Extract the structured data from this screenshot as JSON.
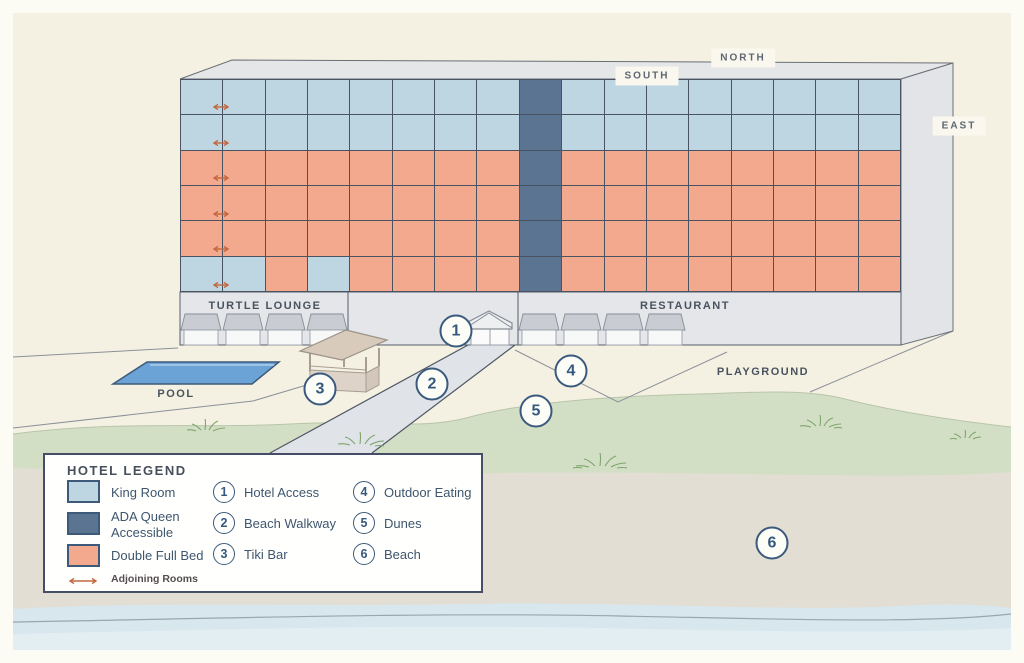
{
  "labels": {
    "north": "NORTH",
    "south": "SOUTH",
    "east": "EAST"
  },
  "building": {
    "lounge_label": "TURTLE LOUNGE",
    "restaurant_label": "RESTAURANT",
    "floors": [
      "KKKKKKKKAKKKKKKKK",
      "KKKKKKKKAKKKKKKKK",
      "DDDDDDDDADDDDDDDD",
      "DDDDDDDDADDDDDDDD",
      "DDDDDDDDADDDDDDDD",
      "KKDKDDDDADDDDDDDD"
    ],
    "room_types": {
      "K": {
        "name": "king-room",
        "color": "#bdd6e2"
      },
      "A": {
        "name": "ada-queen-accessible",
        "color": "#5b7491"
      },
      "D": {
        "name": "double-full-bed",
        "color": "#f3a98e"
      }
    }
  },
  "ground": {
    "pool_label": "POOL",
    "playground_label": "PLAYGROUND"
  },
  "legend": {
    "title": "HOTEL LEGEND",
    "swatches": [
      {
        "type": "K",
        "label": "King Room"
      },
      {
        "type": "A",
        "label": "ADA Queen Accessible"
      },
      {
        "type": "D",
        "label": "Double Full Bed"
      }
    ],
    "adjoining_label": "Adjoining Rooms",
    "numbered": [
      {
        "number": "1",
        "label": "Hotel Access"
      },
      {
        "number": "2",
        "label": "Beach Walkway"
      },
      {
        "number": "3",
        "label": "Tiki Bar"
      },
      {
        "number": "4",
        "label": "Outdoor Eating"
      },
      {
        "number": "5",
        "label": "Dunes"
      },
      {
        "number": "6",
        "label": "Beach"
      }
    ]
  },
  "colors": {
    "adjoining_arrow": "#c4663f",
    "marker_blue": "#3a5a7d",
    "pool_blue": "#6ba3d7",
    "dune_green": "#d3dfc5",
    "sand": "#e3ded3",
    "water": "#d8e7ee"
  }
}
